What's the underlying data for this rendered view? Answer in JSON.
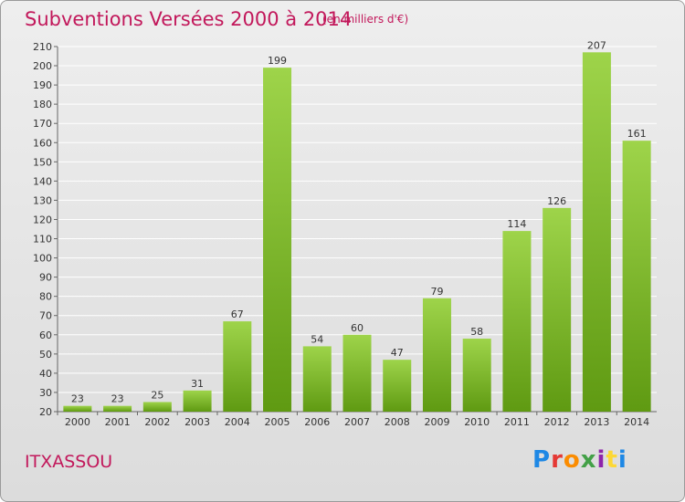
{
  "header": {
    "title": "Subventions Versées 2000 à 2014",
    "subtitle": "(en milliers d'€)"
  },
  "footer": {
    "commune": "ITXASSOU",
    "logo": "Proxiti"
  },
  "colors": {
    "title": "#c2185b",
    "bar_top": "#9ed44a",
    "bar_bottom": "#5f9a12",
    "grid": "#ffffff"
  },
  "chart_data": {
    "type": "bar",
    "title": "Subventions Versées 2000 à 2014",
    "subtitle": "(en milliers d'€)",
    "xlabel": "",
    "ylabel": "",
    "categories": [
      "2000",
      "2001",
      "2002",
      "2003",
      "2004",
      "2005",
      "2006",
      "2007",
      "2008",
      "2009",
      "2010",
      "2011",
      "2012",
      "2013",
      "2014"
    ],
    "values": [
      23,
      23,
      25,
      31,
      67,
      199,
      54,
      60,
      47,
      79,
      58,
      114,
      126,
      207,
      161
    ],
    "ylim": [
      20,
      210
    ],
    "yticks": [
      20,
      30,
      40,
      50,
      60,
      70,
      80,
      90,
      100,
      110,
      120,
      130,
      140,
      150,
      160,
      170,
      180,
      190,
      200,
      210
    ],
    "grid": true,
    "legend": "none"
  }
}
